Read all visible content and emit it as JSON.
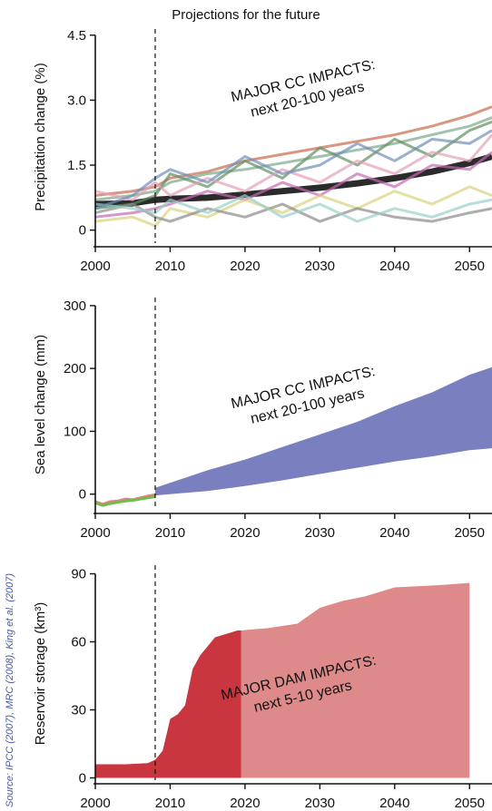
{
  "figure": {
    "title": "Projections for the future",
    "source": "Source: IPCC (2007), MRC (2008), King et al. (2007)",
    "divider_year": 2008
  },
  "colors": {
    "precip_mean": "#2b2b2b",
    "sea_band": "#7a7fbf",
    "sea_obs_green": "#6bbf4a",
    "sea_obs_red": "#e08080",
    "reservoir_dark": "#c9363f",
    "reservoir_light": "#df8a8a",
    "source_text": "#4a5aa8"
  },
  "chart_data": [
    {
      "type": "line",
      "title": "Projections for the future",
      "xlabel": "",
      "ylabel": "Precipitation change (%)",
      "xlim": [
        2000,
        2053
      ],
      "ylim": [
        -0.3,
        4.6
      ],
      "xticks": [
        2000,
        2010,
        2020,
        2030,
        2040,
        2050
      ],
      "yticks": [
        0,
        1.5,
        3.0,
        4.5
      ],
      "ytick_labels": [
        "0",
        "1.5",
        "3.0",
        "4.5"
      ],
      "annotation": [
        "MAJOR CC IMPACTS:",
        "next 20-100 years"
      ],
      "x": [
        2000,
        2005,
        2008,
        2010,
        2015,
        2020,
        2025,
        2030,
        2035,
        2040,
        2045,
        2050,
        2053
      ],
      "series": [
        {
          "values": [
            0.6,
            0.62,
            0.7,
            0.72,
            0.75,
            0.82,
            0.9,
            0.98,
            1.08,
            1.2,
            1.35,
            1.55,
            1.7
          ]
        },
        {
          "values": [
            0.8,
            0.9,
            1.0,
            1.2,
            1.35,
            1.6,
            1.75,
            1.9,
            2.05,
            2.2,
            2.4,
            2.65,
            2.85
          ]
        },
        {
          "values": [
            0.7,
            0.8,
            0.9,
            1.1,
            1.3,
            1.4,
            1.55,
            1.7,
            1.85,
            2.0,
            2.2,
            2.4,
            2.6
          ]
        },
        {
          "values": [
            0.5,
            0.6,
            0.8,
            1.3,
            1.0,
            1.6,
            1.2,
            1.9,
            1.5,
            2.1,
            1.7,
            2.3,
            2.5
          ]
        },
        {
          "values": [
            0.3,
            0.4,
            0.5,
            0.6,
            0.9,
            0.7,
            1.1,
            0.8,
            1.3,
            1.0,
            1.5,
            1.4,
            1.8
          ]
        },
        {
          "values": [
            0.2,
            0.3,
            0.1,
            0.5,
            0.3,
            0.7,
            0.4,
            0.8,
            0.5,
            0.9,
            0.6,
            1.0,
            0.8
          ]
        },
        {
          "values": [
            0.4,
            0.6,
            0.3,
            0.2,
            0.5,
            0.3,
            0.6,
            0.2,
            0.5,
            0.3,
            0.2,
            0.4,
            0.5
          ]
        },
        {
          "values": [
            0.9,
            0.7,
            1.1,
            0.8,
            1.2,
            0.9,
            1.4,
            1.1,
            1.6,
            1.3,
            1.8,
            1.6,
            2.2
          ]
        },
        {
          "values": [
            0.6,
            0.5,
            0.4,
            0.7,
            0.4,
            0.8,
            0.3,
            0.6,
            0.2,
            0.5,
            0.3,
            0.6,
            0.7
          ]
        },
        {
          "values": [
            0.5,
            0.8,
            1.2,
            1.4,
            1.1,
            1.7,
            1.3,
            1.5,
            2.0,
            1.6,
            2.1,
            2.0,
            2.3
          ]
        }
      ]
    },
    {
      "type": "area",
      "title": "",
      "xlabel": "",
      "ylabel": "Sea level change  (mm)",
      "xlim": [
        2000,
        2053
      ],
      "ylim": [
        -25,
        310
      ],
      "xticks": [
        2000,
        2010,
        2020,
        2030,
        2040,
        2050
      ],
      "yticks": [
        0,
        100,
        200,
        300
      ],
      "annotation": [
        "MAJOR CC IMPACTS:",
        "next 20-100 years"
      ],
      "band_x": [
        2008,
        2015,
        2020,
        2025,
        2030,
        2035,
        2040,
        2045,
        2050,
        2053
      ],
      "band_upper": [
        10,
        38,
        55,
        75,
        95,
        115,
        140,
        162,
        190,
        202
      ],
      "band_lower": [
        -2,
        5,
        13,
        22,
        32,
        42,
        52,
        60,
        70,
        73
      ],
      "observed_x": [
        2000,
        2001,
        2002,
        2003,
        2004,
        2005,
        2006,
        2007,
        2008
      ],
      "observed_green": [
        -14,
        -18,
        -15,
        -13,
        -11,
        -10,
        -8,
        -6,
        -4
      ],
      "observed_red": [
        -12,
        -16,
        -12,
        -11,
        -8,
        -9,
        -6,
        -3,
        -1
      ]
    },
    {
      "type": "area",
      "title": "",
      "xlabel": "",
      "ylabel": "Reservoir storage (km³)",
      "xlim": [
        2000,
        2053
      ],
      "ylim": [
        -1,
        93
      ],
      "xticks": [
        2000,
        2010,
        2020,
        2030,
        2040,
        2050
      ],
      "yticks": [
        0,
        30,
        60,
        90
      ],
      "annotation": [
        "MAJOR DAM IMPACTS:",
        "next 5-10 years"
      ],
      "x_built": [
        2000,
        2004,
        2007,
        2008,
        2009,
        2010,
        2011,
        2012,
        2013,
        2014,
        2015,
        2016,
        2017,
        2018,
        2019,
        2019.5
      ],
      "storage_built": [
        6,
        6,
        6.5,
        8,
        12,
        26,
        28,
        32,
        48,
        54,
        58,
        62,
        63,
        64,
        65,
        65
      ],
      "x_planned": [
        2019.5,
        2021,
        2023,
        2027,
        2030,
        2033,
        2036,
        2038,
        2040,
        2043,
        2046,
        2050
      ],
      "storage_planned": [
        65,
        65.5,
        66,
        68,
        75,
        78,
        80,
        82,
        84,
        84.5,
        85,
        86
      ]
    }
  ]
}
